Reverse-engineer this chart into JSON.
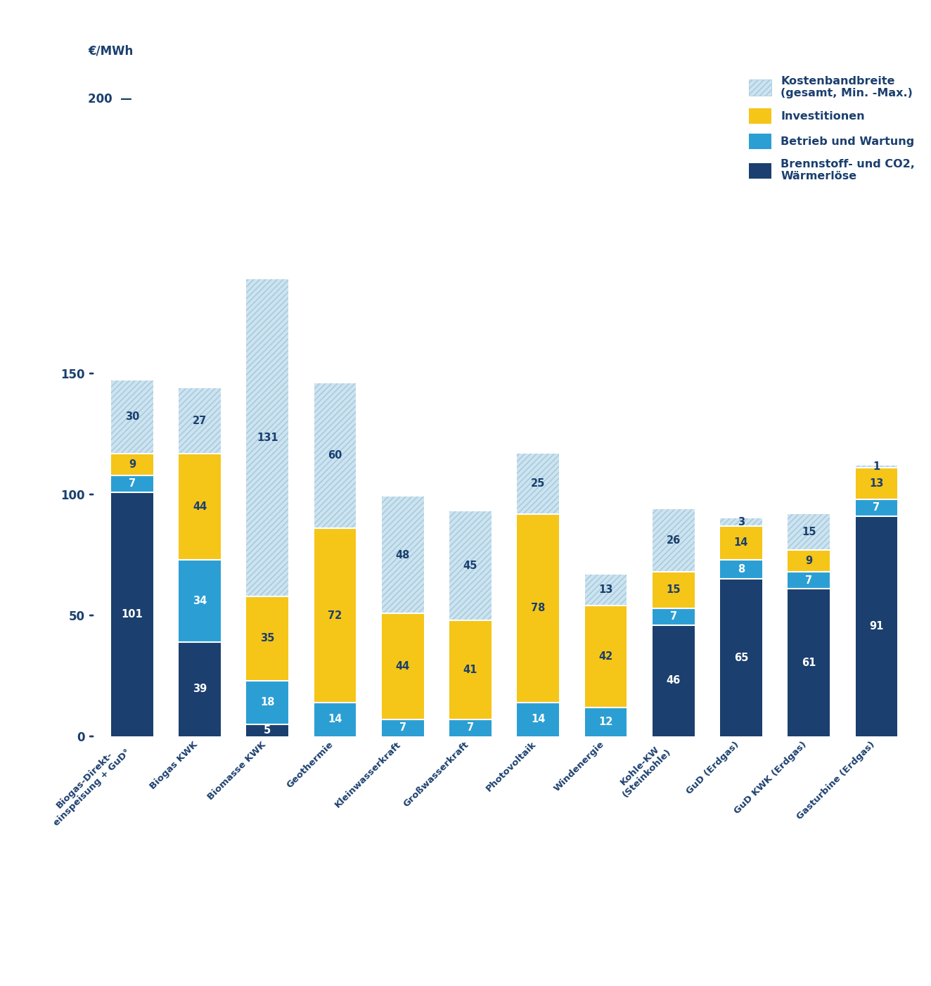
{
  "categories": [
    "Biogas-Direkt-\neinspeisung + GuD°",
    "Biogas KWK",
    "Biomasse KWK",
    "Geothermie",
    "Kleinwasserkraft",
    "Großwasserkraft",
    "Photovoltaik",
    "Windenergie",
    "Kohle-KW\n(Steinkohle)",
    "GuD (Erdgas)",
    "GuD KWK (Erdgas)",
    "Gasturbine (Erdgas)"
  ],
  "dark_blue": [
    101,
    39,
    5,
    0,
    0,
    0,
    0,
    0,
    46,
    65,
    61,
    91
  ],
  "light_blue": [
    7,
    34,
    18,
    14,
    7,
    7,
    14,
    12,
    7,
    8,
    7,
    7
  ],
  "yellow": [
    9,
    44,
    35,
    72,
    44,
    41,
    78,
    42,
    15,
    14,
    9,
    13
  ],
  "hatch": [
    30,
    27,
    131,
    60,
    48,
    45,
    25,
    13,
    26,
    3,
    15,
    1
  ],
  "dark_blue_labels": [
    101,
    39,
    5,
    null,
    null,
    null,
    null,
    null,
    46,
    65,
    61,
    91
  ],
  "light_blue_labels": [
    7,
    34,
    18,
    14,
    7,
    7,
    14,
    12,
    7,
    8,
    7,
    7
  ],
  "yellow_labels": [
    9,
    44,
    35,
    72,
    44,
    41,
    78,
    42,
    15,
    14,
    9,
    13
  ],
  "hatch_labels": [
    30,
    27,
    131,
    60,
    48,
    45,
    25,
    13,
    26,
    3,
    15,
    1
  ],
  "color_dark_blue": "#1b3f6e",
  "color_light_blue": "#2b9fd4",
  "color_yellow": "#f5c518",
  "color_hatch_face": "#cde3ef",
  "color_hatch_line": "#a0c8de",
  "color_text_white": "#ffffff",
  "color_text_dark": "#1b3f6e",
  "ytick_labels": [
    "0",
    "50",
    "100",
    "150"
  ],
  "ytick_vals": [
    0,
    50,
    100,
    150
  ],
  "ylim": [
    0,
    270
  ],
  "bar_width": 0.62,
  "legend_labels": [
    "Kostenbandbreite\n(gesamt, Min. -Max.)",
    "Investitionen",
    "Betrieb und Wartung",
    "Brennstoff- und CO2,\nWärmerlöse"
  ],
  "ylabel_top": "€/MWh",
  "ylabel_200": "200"
}
